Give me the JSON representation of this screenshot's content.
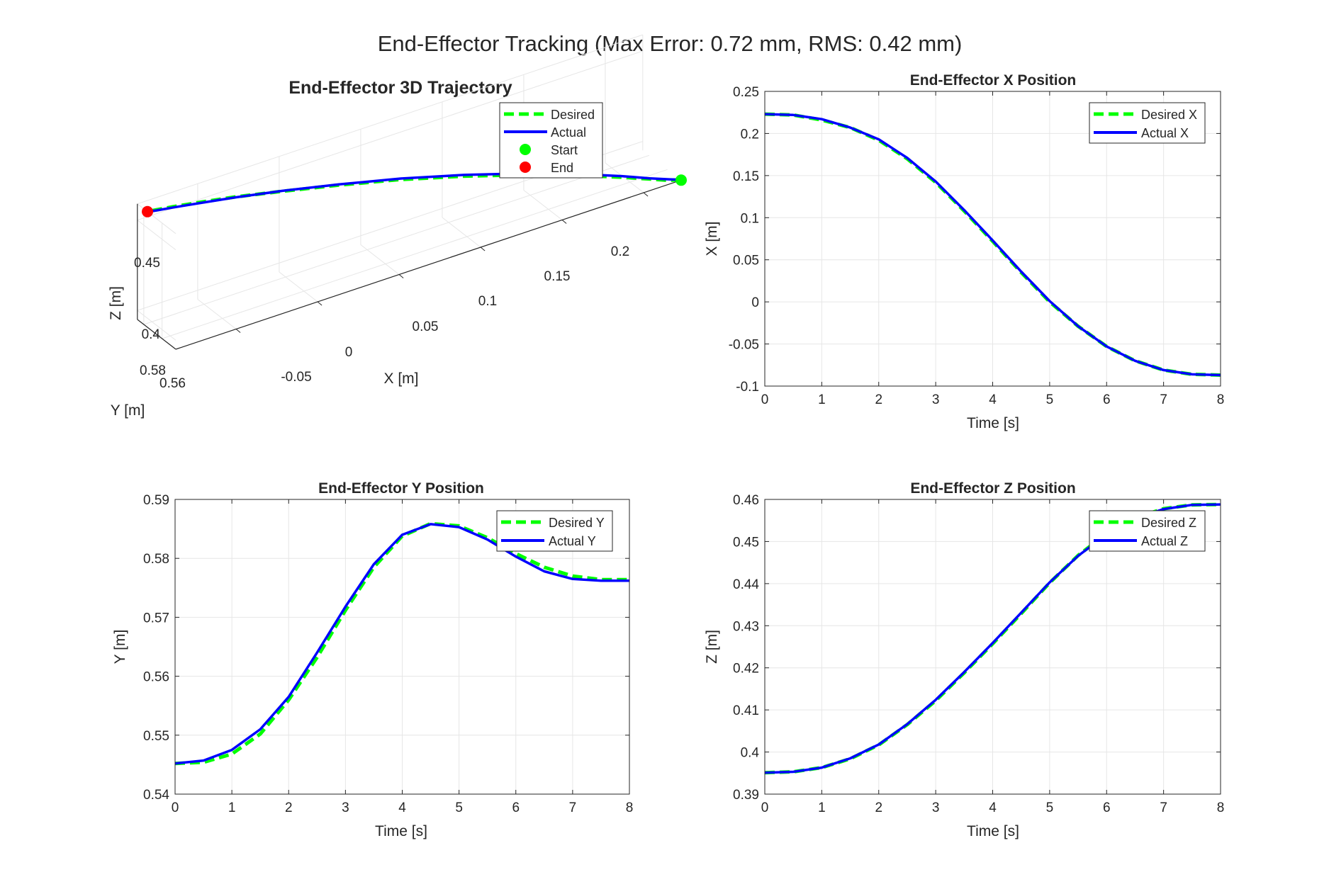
{
  "figure": {
    "suptitle": "End-Effector Tracking (Max Error: 0.72 mm, RMS: 0.42 mm)"
  },
  "colors": {
    "desired": "#00ff00",
    "actual": "#0000ff",
    "start": "#00ff00",
    "end": "#ff0000",
    "grid": "#e6e6e6",
    "axis": "#262626"
  },
  "chart_data": [
    {
      "id": "traj3d",
      "type": "line",
      "title": "End-Effector 3D Trajectory",
      "xlabel": "X [m]",
      "ylabel": "Y [m]",
      "zlabel": "Z [m]",
      "x_ticks": [
        "-0.05",
        "0",
        "0.05",
        "0.1",
        "0.15",
        "0.2"
      ],
      "y_ticks": [
        "0.56",
        "0.58"
      ],
      "z_ticks": [
        "0.4",
        "0.45"
      ],
      "legend": [
        "Desired",
        "Actual",
        "Start",
        "End"
      ],
      "legend_position": "top-right",
      "grid": true,
      "start_point": {
        "x": 0.223,
        "y": 0.545,
        "z": 0.395
      },
      "end_point": {
        "x": -0.087,
        "y": 0.576,
        "z": 0.459
      }
    },
    {
      "id": "xpos",
      "type": "line",
      "title": "End-Effector X Position",
      "xlabel": "Time [s]",
      "ylabel": "X [m]",
      "xlim": [
        0,
        8
      ],
      "ylim": [
        -0.1,
        0.25
      ],
      "x_ticks": [
        "0",
        "1",
        "2",
        "3",
        "4",
        "5",
        "6",
        "7",
        "8"
      ],
      "y_ticks": [
        "-0.1",
        "-0.05",
        "0",
        "0.05",
        "0.1",
        "0.15",
        "0.2",
        "0.25"
      ],
      "grid": true,
      "legend_position": "top-right",
      "x": [
        0,
        0.5,
        1,
        1.5,
        2,
        2.5,
        3,
        3.5,
        4,
        4.5,
        5,
        5.5,
        6,
        6.5,
        7,
        7.5,
        8
      ],
      "series": [
        {
          "name": "Desired X",
          "values": [
            0.223,
            0.222,
            0.216,
            0.207,
            0.192,
            0.17,
            0.142,
            0.108,
            0.072,
            0.035,
            0.0,
            -0.029,
            -0.053,
            -0.07,
            -0.081,
            -0.086,
            -0.087
          ]
        },
        {
          "name": "Actual X",
          "values": [
            0.223,
            0.222,
            0.217,
            0.207,
            0.193,
            0.171,
            0.143,
            0.109,
            0.073,
            0.036,
            0.001,
            -0.029,
            -0.053,
            -0.07,
            -0.081,
            -0.086,
            -0.087
          ]
        }
      ]
    },
    {
      "id": "ypos",
      "type": "line",
      "title": "End-Effector Y Position",
      "xlabel": "Time [s]",
      "ylabel": "Y [m]",
      "xlim": [
        0,
        8
      ],
      "ylim": [
        0.54,
        0.59
      ],
      "x_ticks": [
        "0",
        "1",
        "2",
        "3",
        "4",
        "5",
        "6",
        "7",
        "8"
      ],
      "y_ticks": [
        "0.54",
        "0.55",
        "0.56",
        "0.57",
        "0.58",
        "0.59"
      ],
      "grid": true,
      "legend_position": "top-right",
      "x": [
        0,
        0.5,
        1,
        1.5,
        2,
        2.5,
        3,
        3.5,
        4,
        4.5,
        5,
        5.5,
        6,
        6.5,
        7,
        7.5,
        8
      ],
      "series": [
        {
          "name": "Desired Y",
          "values": [
            0.5452,
            0.5454,
            0.5468,
            0.5502,
            0.556,
            0.5632,
            0.5712,
            0.5785,
            0.5838,
            0.5859,
            0.5855,
            0.5835,
            0.5808,
            0.5785,
            0.577,
            0.5764,
            0.5764
          ]
        },
        {
          "name": "Actual Y",
          "values": [
            0.5452,
            0.5457,
            0.5475,
            0.551,
            0.5565,
            0.564,
            0.5718,
            0.579,
            0.584,
            0.5858,
            0.5853,
            0.5832,
            0.5803,
            0.5778,
            0.5765,
            0.5762,
            0.5762
          ]
        }
      ]
    },
    {
      "id": "zpos",
      "type": "line",
      "title": "End-Effector Z Position",
      "xlabel": "Time [s]",
      "ylabel": "Z [m]",
      "xlim": [
        0,
        8
      ],
      "ylim": [
        0.39,
        0.46
      ],
      "x_ticks": [
        "0",
        "1",
        "2",
        "3",
        "4",
        "5",
        "6",
        "7",
        "8"
      ],
      "y_ticks": [
        "0.39",
        "0.4",
        "0.41",
        "0.42",
        "0.43",
        "0.44",
        "0.45",
        "0.46"
      ],
      "grid": true,
      "legend_position": "top-right",
      "x": [
        0,
        0.5,
        1,
        1.5,
        2,
        2.5,
        3,
        3.5,
        4,
        4.5,
        5,
        5.5,
        6,
        6.5,
        7,
        7.5,
        8
      ],
      "series": [
        {
          "name": "Desired Z",
          "values": [
            0.3951,
            0.3953,
            0.3963,
            0.3984,
            0.4017,
            0.4065,
            0.4122,
            0.4188,
            0.4257,
            0.4329,
            0.4402,
            0.4467,
            0.4519,
            0.4556,
            0.4578,
            0.4587,
            0.4588
          ]
        },
        {
          "name": "Actual Z",
          "values": [
            0.3951,
            0.3953,
            0.3963,
            0.3985,
            0.4018,
            0.4066,
            0.4124,
            0.419,
            0.4259,
            0.4331,
            0.4403,
            0.4466,
            0.4517,
            0.4555,
            0.4577,
            0.4587,
            0.4588
          ]
        }
      ]
    }
  ]
}
